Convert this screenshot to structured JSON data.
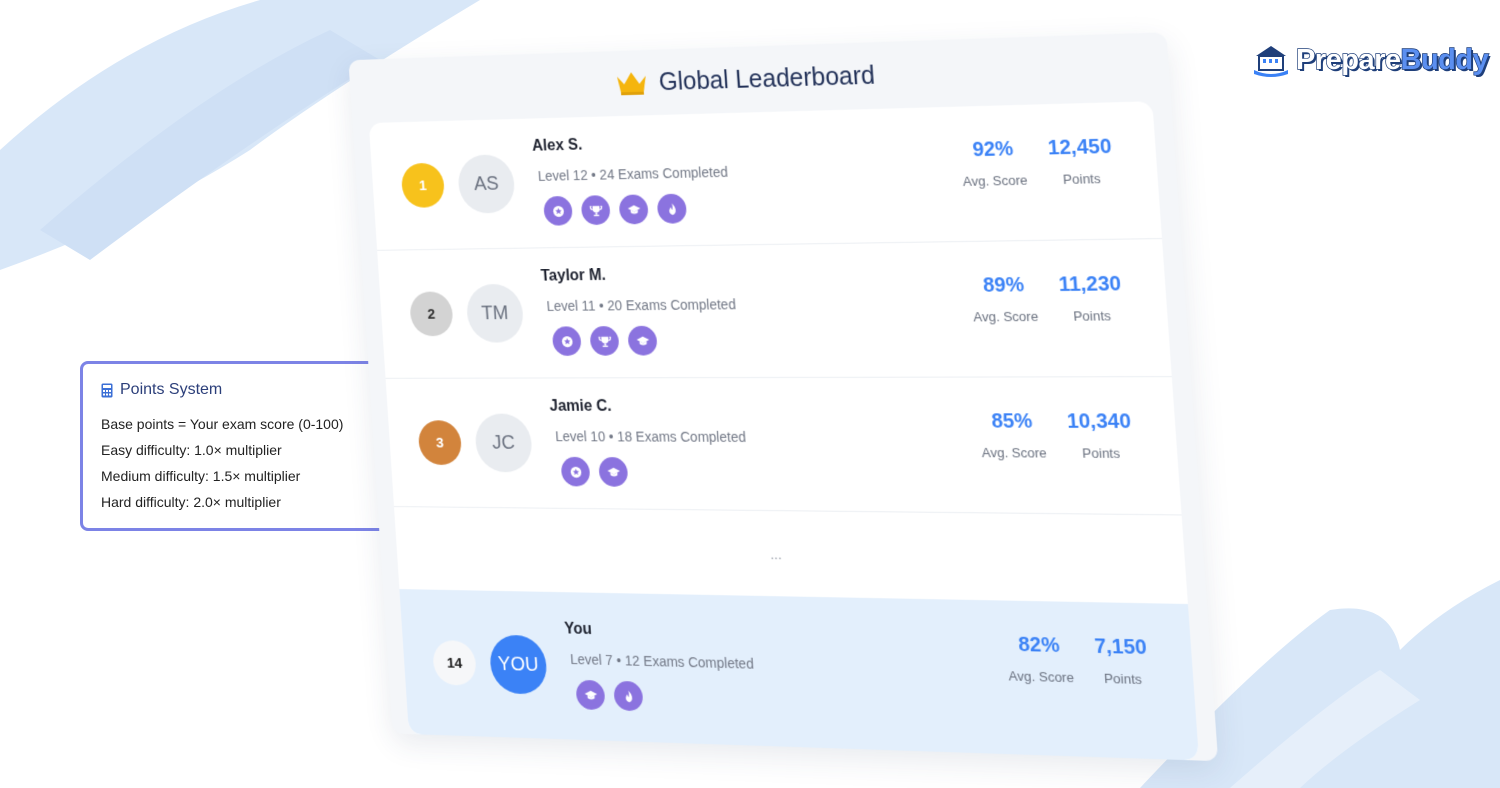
{
  "brand": {
    "name_part1": "Prepare",
    "name_part2": "Buddy"
  },
  "points_system": {
    "title": "Points System",
    "lines": [
      "Base points = Your exam score (0-100)",
      "Easy difficulty: 1.0× multiplier",
      "Medium difficulty: 1.5× multiplier",
      "Hard difficulty: 2.0× multiplier"
    ]
  },
  "leaderboard": {
    "title": "Global Leaderboard",
    "score_label": "Avg. Score",
    "points_label": "Points",
    "ellipsis": "...",
    "entries": [
      {
        "rank": "1",
        "initials": "AS",
        "name": "Alex S.",
        "meta": "Level 12 • 24 Exams Completed",
        "score": "92%",
        "points": "12,450",
        "badges": [
          "star-icon",
          "trophy-icon",
          "graduation-cap-icon",
          "fire-icon"
        ]
      },
      {
        "rank": "2",
        "initials": "TM",
        "name": "Taylor M.",
        "meta": "Level 11 • 20 Exams Completed",
        "score": "89%",
        "points": "11,230",
        "badges": [
          "star-icon",
          "trophy-icon",
          "graduation-cap-icon"
        ]
      },
      {
        "rank": "3",
        "initials": "JC",
        "name": "Jamie C.",
        "meta": "Level 10 • 18 Exams Completed",
        "score": "85%",
        "points": "10,340",
        "badges": [
          "star-icon",
          "graduation-cap-icon"
        ]
      }
    ],
    "you": {
      "rank": "14",
      "initials": "YOU",
      "name": "You",
      "meta": "Level 7 • 12 Exams Completed",
      "score": "82%",
      "points": "7,150",
      "badges": [
        "graduation-cap-icon",
        "fire-icon"
      ]
    }
  },
  "colors": {
    "accent": "#3b82f6",
    "badge": "#8b73df",
    "gold": "#f7c21c",
    "silver": "#d3d3d3",
    "bronze": "#d2843c",
    "you_highlight": "#e3effc"
  }
}
